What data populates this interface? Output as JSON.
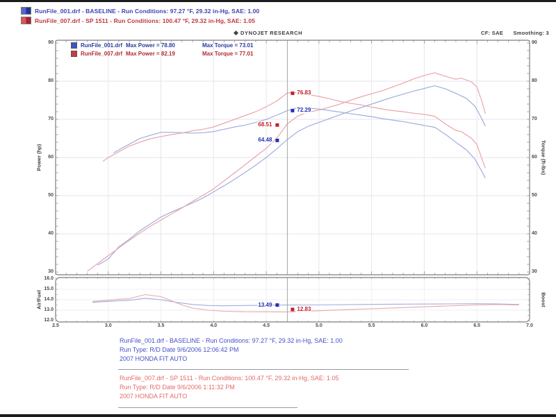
{
  "header": {
    "runs": [
      {
        "text": "RunFile_001.drf - BASELINE  -  Run Conditions: 97.27 °F, 29.32 in-Hg, SAE: 1.00",
        "color": "#3a45b0",
        "swatch": [
          "#5566cc",
          "#223399"
        ]
      },
      {
        "text": "RunFile_007.drf - SP 1511  -  Run Conditions: 100.47 °F, 29.32 in-Hg, SAE: 1.05",
        "color": "#c03540",
        "swatch": [
          "#dd5555",
          "#aa2233"
        ]
      }
    ],
    "brand": "DYNOJET RESEARCH",
    "correction": "CF: SAE",
    "smoothing": "Smoothing: 3"
  },
  "legend": {
    "rows": [
      {
        "file": "RunFile_001.drf",
        "max_power": "Max Power = 78.80",
        "max_torque": "Max Torque = 73.01",
        "color": "#2a3a9e",
        "swatch": "#3a56c4"
      },
      {
        "file": "RunFile_007.drf",
        "max_power": "Max Power = 82.19",
        "max_torque": "Max Torque = 77.01",
        "color": "#b02a33",
        "swatch": "#cc3a44"
      }
    ]
  },
  "axes": {
    "left_title": "Power (hp)",
    "right_title": "Torque (ft-lbs)",
    "af_left_title": "Air/Fuel",
    "af_right_title": "Boost"
  },
  "footer": {
    "blocks": [
      {
        "color": "#4450c8",
        "lines": [
          "RunFile_001.drf - BASELINE  -  Run Conditions: 97.27 °F, 29.32 in-Hg, SAE: 1.00",
          "Run Type: R/D  Date 9/6/2006 12:06:42 PM",
          "2007 HONDA FIT AUTO"
        ]
      },
      {
        "color": "#e36a6a",
        "lines": [
          "RunFile_007.drf - SP 1511  -  Run Conditions: 100.47 °F, 29.32 in-Hg, SAE: 1.05",
          "Run Type: R/D  Date 9/6/2006 1:11:32 PM",
          "2007 HONDA FIT AUTO"
        ]
      }
    ]
  },
  "chart_data": {
    "type": "line",
    "title": "DYNOJET RESEARCH dyno run comparison - 2007 Honda Fit Auto, baseline vs SP 1511 intake",
    "main": {
      "ylabel": "Power (hp)",
      "ylabel_right": "Torque (ft-lbs)",
      "xlim": [
        2.5,
        7.0
      ],
      "ylim": [
        30,
        90
      ],
      "x_ticks": [
        2.5,
        3.0,
        3.5,
        4.0,
        4.5,
        5.0,
        5.5,
        6.0,
        6.5,
        7.0
      ],
      "y_ticks": [
        90,
        80,
        70,
        60,
        50,
        40,
        30
      ],
      "grid": true,
      "series": [
        {
          "name": "power-baseline",
          "color": "#a0aede",
          "points": [
            [
              2.9,
              31.8
            ],
            [
              3.0,
              33.4
            ],
            [
              3.1,
              36.6
            ],
            [
              3.2,
              38.6
            ],
            [
              3.3,
              40.8
            ],
            [
              3.4,
              42.6
            ],
            [
              3.5,
              44.4
            ],
            [
              3.6,
              45.7
            ],
            [
              3.7,
              46.9
            ],
            [
              3.8,
              48.1
            ],
            [
              3.9,
              49.4
            ],
            [
              4.0,
              51.0
            ],
            [
              4.1,
              52.6
            ],
            [
              4.2,
              54.3
            ],
            [
              4.3,
              56.1
            ],
            [
              4.4,
              58.0
            ],
            [
              4.5,
              60.0
            ],
            [
              4.6,
              62.3
            ],
            [
              4.7,
              64.7
            ],
            [
              4.8,
              66.8
            ],
            [
              4.9,
              68.2
            ],
            [
              5.0,
              69.2
            ],
            [
              5.1,
              70.2
            ],
            [
              5.2,
              71.2
            ],
            [
              5.3,
              72.2
            ],
            [
              5.4,
              73.1
            ],
            [
              5.5,
              74.0
            ],
            [
              5.6,
              74.9
            ],
            [
              5.7,
              75.8
            ],
            [
              5.8,
              76.6
            ],
            [
              5.9,
              77.4
            ],
            [
              6.0,
              78.1
            ],
            [
              6.1,
              78.8
            ],
            [
              6.2,
              78.0
            ],
            [
              6.3,
              76.8
            ],
            [
              6.4,
              75.5
            ],
            [
              6.48,
              73.5
            ],
            [
              6.55,
              70.0
            ],
            [
              6.58,
              68.2
            ]
          ]
        },
        {
          "name": "power-sp1511",
          "color": "#e8a6ac",
          "points": [
            [
              2.8,
              30.2
            ],
            [
              2.9,
              32.2
            ],
            [
              3.0,
              34.3
            ],
            [
              3.1,
              36.3
            ],
            [
              3.2,
              38.3
            ],
            [
              3.3,
              40.2
            ],
            [
              3.4,
              42.0
            ],
            [
              3.5,
              43.6
            ],
            [
              3.6,
              45.2
            ],
            [
              3.7,
              46.8
            ],
            [
              3.8,
              48.5
            ],
            [
              3.9,
              50.1
            ],
            [
              4.0,
              51.8
            ],
            [
              4.1,
              53.9
            ],
            [
              4.2,
              56.0
            ],
            [
              4.3,
              58.1
            ],
            [
              4.4,
              60.3
            ],
            [
              4.5,
              62.4
            ],
            [
              4.6,
              65.1
            ],
            [
              4.7,
              68.8
            ],
            [
              4.8,
              70.9
            ],
            [
              4.9,
              71.9
            ],
            [
              5.0,
              72.4
            ],
            [
              5.1,
              73.2
            ],
            [
              5.2,
              74.0
            ],
            [
              5.3,
              75.0
            ],
            [
              5.4,
              75.9
            ],
            [
              5.5,
              76.7
            ],
            [
              5.6,
              77.5
            ],
            [
              5.7,
              78.5
            ],
            [
              5.8,
              79.5
            ],
            [
              5.9,
              80.6
            ],
            [
              6.0,
              81.5
            ],
            [
              6.1,
              82.2
            ],
            [
              6.2,
              81.3
            ],
            [
              6.3,
              80.5
            ],
            [
              6.35,
              80.8
            ],
            [
              6.45,
              79.8
            ],
            [
              6.5,
              78.5
            ],
            [
              6.55,
              74.5
            ],
            [
              6.58,
              71.5
            ]
          ]
        },
        {
          "name": "torque-baseline",
          "color": "#a0aede",
          "points": [
            [
              3.05,
              61.2
            ],
            [
              3.1,
              62.0
            ],
            [
              3.2,
              63.5
            ],
            [
              3.3,
              65.0
            ],
            [
              3.4,
              65.8
            ],
            [
              3.5,
              66.6
            ],
            [
              3.6,
              66.6
            ],
            [
              3.7,
              66.5
            ],
            [
              3.8,
              66.4
            ],
            [
              3.9,
              66.5
            ],
            [
              4.0,
              66.8
            ],
            [
              4.1,
              67.4
            ],
            [
              4.2,
              68.0
            ],
            [
              4.3,
              68.5
            ],
            [
              4.4,
              69.2
            ],
            [
              4.5,
              70.0
            ],
            [
              4.6,
              71.1
            ],
            [
              4.7,
              72.3
            ],
            [
              4.8,
              73.0
            ],
            [
              4.9,
              72.9
            ],
            [
              5.0,
              72.7
            ],
            [
              5.1,
              72.3
            ],
            [
              5.2,
              71.9
            ],
            [
              5.3,
              71.5
            ],
            [
              5.4,
              71.1
            ],
            [
              5.5,
              70.7
            ],
            [
              5.6,
              70.2
            ],
            [
              5.7,
              69.8
            ],
            [
              5.8,
              69.4
            ],
            [
              5.9,
              68.9
            ],
            [
              6.0,
              68.4
            ],
            [
              6.1,
              67.9
            ],
            [
              6.2,
              66.1
            ],
            [
              6.3,
              64.0
            ],
            [
              6.4,
              62.0
            ],
            [
              6.48,
              59.6
            ],
            [
              6.55,
              56.2
            ],
            [
              6.58,
              54.6
            ]
          ]
        },
        {
          "name": "torque-sp1511",
          "color": "#e8a6ac",
          "points": [
            [
              2.95,
              59.0
            ],
            [
              3.0,
              60.0
            ],
            [
              3.1,
              61.5
            ],
            [
              3.2,
              63.0
            ],
            [
              3.3,
              64.0
            ],
            [
              3.4,
              64.9
            ],
            [
              3.5,
              65.5
            ],
            [
              3.6,
              66.0
            ],
            [
              3.7,
              66.4
            ],
            [
              3.8,
              67.0
            ],
            [
              3.9,
              67.4
            ],
            [
              4.0,
              68.0
            ],
            [
              4.1,
              69.0
            ],
            [
              4.2,
              70.0
            ],
            [
              4.3,
              71.0
            ],
            [
              4.4,
              72.0
            ],
            [
              4.5,
              73.3
            ],
            [
              4.6,
              74.8
            ],
            [
              4.7,
              76.9
            ],
            [
              4.75,
              77.0
            ],
            [
              4.8,
              76.9
            ],
            [
              4.9,
              76.5
            ],
            [
              5.0,
              76.0
            ],
            [
              5.1,
              75.4
            ],
            [
              5.2,
              74.7
            ],
            [
              5.3,
              74.2
            ],
            [
              5.4,
              73.8
            ],
            [
              5.5,
              73.2
            ],
            [
              5.6,
              72.7
            ],
            [
              5.7,
              72.3
            ],
            [
              5.8,
              72.0
            ],
            [
              5.9,
              71.6
            ],
            [
              6.0,
              71.3
            ],
            [
              6.1,
              70.8
            ],
            [
              6.2,
              68.8
            ],
            [
              6.3,
              67.1
            ],
            [
              6.35,
              66.8
            ],
            [
              6.45,
              65.0
            ],
            [
              6.5,
              63.4
            ],
            [
              6.55,
              59.5
            ],
            [
              6.58,
              57.2
            ]
          ]
        }
      ]
    },
    "af": {
      "ylabel": "Air/Fuel",
      "ylabel_right": "Boost",
      "ylim": [
        12,
        16
      ],
      "y_ticks": [
        16.0,
        15.0,
        14.0,
        13.0,
        12.0
      ],
      "series": [
        {
          "name": "airfuel-baseline",
          "color": "#a0aede",
          "points": [
            [
              2.85,
              13.75
            ],
            [
              3.0,
              13.85
            ],
            [
              3.1,
              13.9
            ],
            [
              3.2,
              13.95
            ],
            [
              3.35,
              14.15
            ],
            [
              3.5,
              14.0
            ],
            [
              3.65,
              13.75
            ],
            [
              3.8,
              13.55
            ],
            [
              3.95,
              13.45
            ],
            [
              4.1,
              13.42
            ],
            [
              4.3,
              13.45
            ],
            [
              4.5,
              13.47
            ],
            [
              4.7,
              13.49
            ],
            [
              5.0,
              13.5
            ],
            [
              5.4,
              13.55
            ],
            [
              5.8,
              13.58
            ],
            [
              6.2,
              13.6
            ],
            [
              6.5,
              13.62
            ],
            [
              6.7,
              13.6
            ],
            [
              6.9,
              13.55
            ]
          ]
        },
        {
          "name": "airfuel-sp1511",
          "color": "#e8a6ac",
          "points": [
            [
              2.85,
              13.85
            ],
            [
              3.0,
              13.95
            ],
            [
              3.1,
              14.05
            ],
            [
              3.2,
              14.1
            ],
            [
              3.35,
              14.5
            ],
            [
              3.5,
              14.3
            ],
            [
              3.6,
              13.9
            ],
            [
              3.7,
              13.5
            ],
            [
              3.8,
              13.2
            ],
            [
              3.95,
              13.0
            ],
            [
              4.1,
              12.9
            ],
            [
              4.3,
              12.85
            ],
            [
              4.5,
              12.84
            ],
            [
              4.7,
              12.83
            ],
            [
              5.0,
              12.95
            ],
            [
              5.4,
              13.1
            ],
            [
              5.8,
              13.25
            ],
            [
              6.2,
              13.4
            ],
            [
              6.5,
              13.5
            ],
            [
              6.7,
              13.55
            ],
            [
              6.9,
              13.5
            ]
          ]
        }
      ]
    },
    "cursor": {
      "rpm": 4.7,
      "main_labels": [
        {
          "text": "76.83",
          "value": 76.83,
          "color": "#c42129",
          "side": "right"
        },
        {
          "text": "72.29",
          "value": 72.29,
          "color": "#2430b8",
          "side": "right"
        },
        {
          "text": "68.51",
          "value": 68.51,
          "color": "#c42129",
          "side": "left"
        },
        {
          "text": "64.48",
          "value": 64.48,
          "color": "#2430b8",
          "side": "left"
        }
      ],
      "af_labels": [
        {
          "text": "13.49",
          "value": 13.49,
          "color": "#2430b8",
          "side": "left"
        },
        {
          "text": "12.83",
          "value": 12.83,
          "color": "#c42129",
          "side": "right"
        }
      ]
    }
  }
}
